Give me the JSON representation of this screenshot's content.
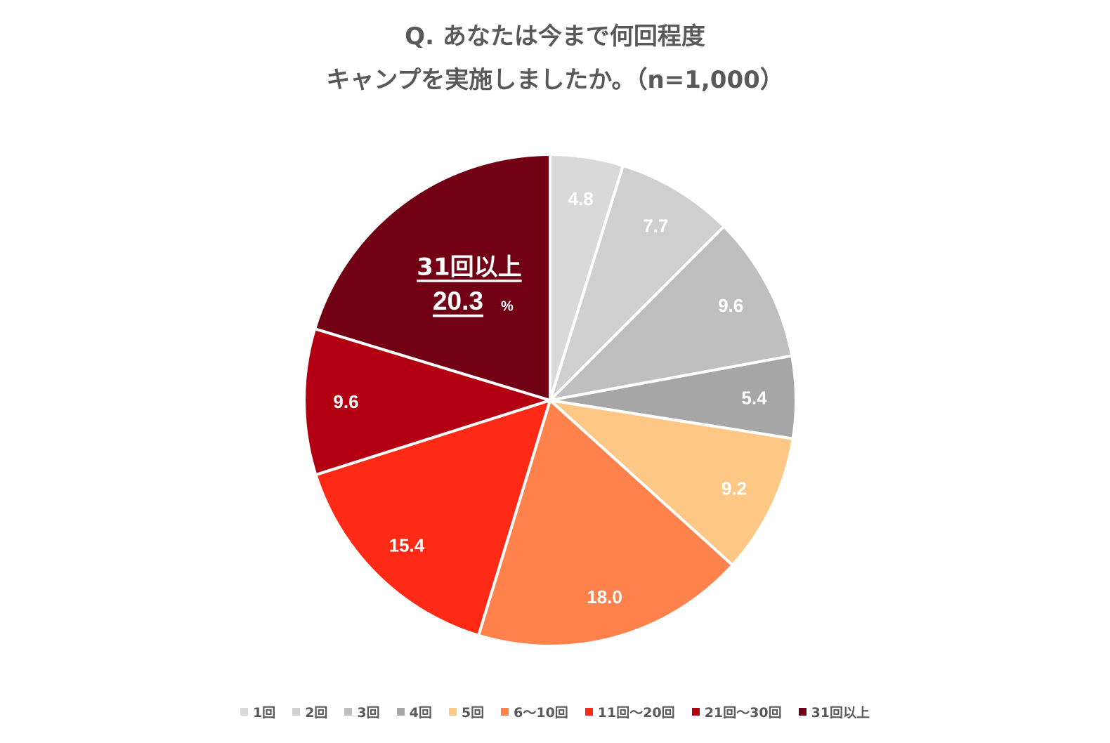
{
  "title": {
    "line1": "Q. あなたは今まで何回程度",
    "line2": "キャンプを実施しましたか。（n=1,000）"
  },
  "chart_data": {
    "type": "pie",
    "categories": [
      "1回",
      "2回",
      "3回",
      "4回",
      "5回",
      "6〜10回",
      "11回〜20回",
      "21回〜30回",
      "31回以上"
    ],
    "values": [
      4.8,
      7.7,
      9.6,
      5.4,
      9.2,
      18.0,
      15.4,
      9.6,
      20.3
    ],
    "value_labels": [
      "4.8",
      "7.7",
      "9.6",
      "5.4",
      "9.2",
      "18.0",
      "15.4",
      "9.6",
      "20.3"
    ],
    "colors": [
      "#d9d9d9",
      "#d0cfcf",
      "#bfbfbf",
      "#a6a6a6",
      "#fdc886",
      "#ff814b",
      "#ff2a16",
      "#b20012",
      "#720014"
    ],
    "label_colors": [
      "#ffffff",
      "#ffffff",
      "#ffffff",
      "#ffffff",
      "#ffffff",
      "#ffffff",
      "#ffffff",
      "#ffffff",
      "#ffffff"
    ],
    "start_angle_deg": 0,
    "direction": "clockwise",
    "legend_position": "bottom",
    "highlight": {
      "category": "31回以上",
      "value": "20.3",
      "unit": "%"
    }
  }
}
